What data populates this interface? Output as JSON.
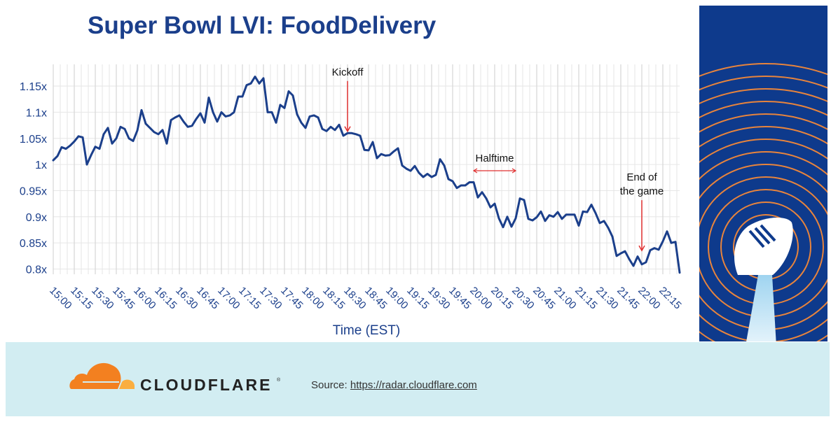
{
  "colors": {
    "title": "#1b3f8b",
    "line": "#1b3f8b",
    "axis_text": "#1b3f8b",
    "grid": "#e6e6e6",
    "annotation_arrow": "#e03030",
    "side_panel": "#0e3a8c",
    "side_rings": "#e8843c",
    "footer_bg": "#d2edf2",
    "logo_orange": "#f38020",
    "logo_light": "#faae40"
  },
  "brand": {
    "name": "CLOUDFLARE",
    "trademark": "®",
    "logo_icon": "cloud-logo-icon"
  },
  "source": {
    "prefix": "Source: ",
    "link_text": "https://radar.cloudflare.com"
  },
  "chart_data": {
    "type": "line",
    "title": "Super Bowl LVI: FoodDelivery",
    "xlabel": "Time (EST)",
    "ylabel": "",
    "ylim": [
      0.79,
      1.18
    ],
    "grid": true,
    "y_ticks": [
      0.8,
      0.85,
      0.9,
      0.95,
      1.0,
      1.05,
      1.1,
      1.15
    ],
    "y_tick_labels": [
      "0.8x",
      "0.85x",
      "0.9x",
      "0.95x",
      "1x",
      "1.05x",
      "1.1x",
      "1.15x"
    ],
    "x_tick_labels": [
      "15:00",
      "15:15",
      "15:30",
      "15:45",
      "16:00",
      "16:15",
      "16:30",
      "16:45",
      "17:00",
      "17:15",
      "17:30",
      "17:45",
      "18:00",
      "18:15",
      "18:30",
      "18:45",
      "19:00",
      "19:15",
      "19:30",
      "19:45",
      "20:00",
      "20:15",
      "20:30",
      "20:45",
      "21:00",
      "21:15",
      "21:30",
      "21:45",
      "22:00",
      "22:15"
    ],
    "x_start": "15:00",
    "x_interval_minutes": 3,
    "series": [
      {
        "values": [
          1.008,
          1.016,
          1.033,
          1.03,
          1.036,
          1.044,
          1.054,
          1.052,
          1.0,
          1.018,
          1.034,
          1.03,
          1.058,
          1.07,
          1.04,
          1.05,
          1.072,
          1.068,
          1.05,
          1.045,
          1.065,
          1.104,
          1.078,
          1.07,
          1.062,
          1.058,
          1.066,
          1.04,
          1.085,
          1.09,
          1.094,
          1.082,
          1.072,
          1.074,
          1.087,
          1.098,
          1.08,
          1.128,
          1.1,
          1.082,
          1.1,
          1.092,
          1.094,
          1.1,
          1.13,
          1.13,
          1.152,
          1.155,
          1.168,
          1.155,
          1.165,
          1.1,
          1.1,
          1.08,
          1.114,
          1.108,
          1.14,
          1.132,
          1.096,
          1.08,
          1.07,
          1.092,
          1.094,
          1.09,
          1.068,
          1.064,
          1.072,
          1.066,
          1.076,
          1.055,
          1.06,
          1.06,
          1.058,
          1.055,
          1.028,
          1.027,
          1.043,
          1.012,
          1.02,
          1.017,
          1.018,
          1.025,
          1.031,
          0.998,
          0.992,
          0.988,
          0.997,
          0.984,
          0.976,
          0.982,
          0.976,
          0.98,
          1.01,
          0.998,
          0.972,
          0.968,
          0.955,
          0.96,
          0.96,
          0.966,
          0.966,
          0.937,
          0.947,
          0.935,
          0.918,
          0.925,
          0.897,
          0.88,
          0.9,
          0.881,
          0.897,
          0.935,
          0.932,
          0.896,
          0.893,
          0.899,
          0.91,
          0.892,
          0.903,
          0.9,
          0.909,
          0.896,
          0.904,
          0.904,
          0.904,
          0.883,
          0.91,
          0.909,
          0.923,
          0.907,
          0.888,
          0.892,
          0.879,
          0.862,
          0.825,
          0.83,
          0.834,
          0.819,
          0.806,
          0.824,
          0.809,
          0.813,
          0.836,
          0.84,
          0.837,
          0.853,
          0.872,
          0.85,
          0.852,
          0.793
        ]
      }
    ],
    "annotations": [
      {
        "label": "Kickoff",
        "time": "18:30",
        "value": 1.058,
        "arrow": "down"
      },
      {
        "label": "Halftime",
        "start": "20:00",
        "end": "20:30",
        "arrow": "span"
      },
      {
        "label": "End of the game",
        "time": "22:00",
        "value": 0.83,
        "arrow": "down"
      }
    ]
  }
}
